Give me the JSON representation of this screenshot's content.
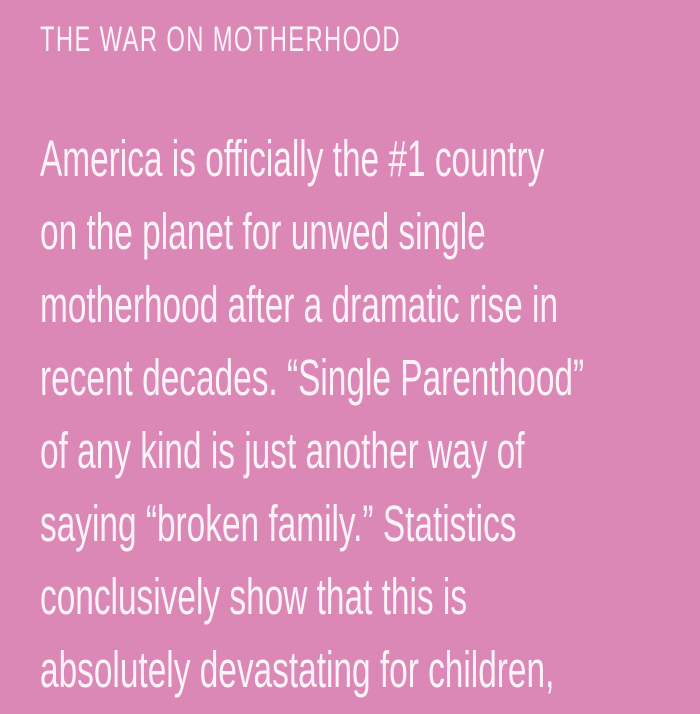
{
  "title": "THE WAR ON MOTHERHOOD",
  "lines": [
    "America is officially the #1 country",
    "on the planet for unwed single",
    "motherhood after a dramatic rise in",
    "recent decades. “Single Parenthood”",
    "of any kind is just another way of",
    "saying “broken family.” Statistics",
    "conclusively show that this is",
    "absolutely devastating for children,"
  ],
  "colors": {
    "background": "#db88b7",
    "text": "#fdf3f8"
  }
}
